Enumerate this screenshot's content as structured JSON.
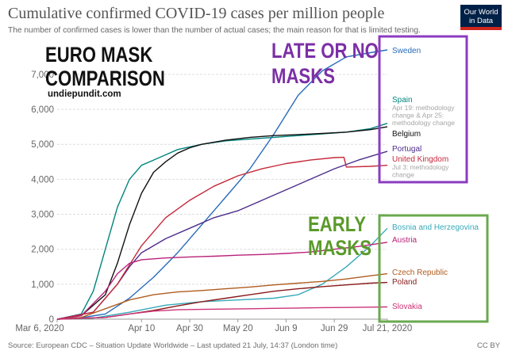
{
  "header": {
    "title": "Cumulative confirmed COVID-19 cases per million people",
    "subtitle": "The number of confirmed cases is lower than the number of actual cases; the main reason for that is limited testing.",
    "logo_line1": "Our World",
    "logo_line2": "in Data"
  },
  "annotations": {
    "euro_line1": "EURO MASK",
    "euro_line2": "COMPARISON",
    "site": "undiepundit.com",
    "late_line1": "LATE OR NO",
    "late_line2": "MASKS",
    "early_line1": "EARLY",
    "early_line2": "MASKS"
  },
  "footer": {
    "source": "Source: European CDC – Situation Update Worldwide – Last updated 21 July, 14:37 (London time)",
    "license": "CC BY"
  },
  "colors": {
    "late_box": "#8b3cc0",
    "early_box": "#6aa84f"
  },
  "chart_data": {
    "type": "line",
    "title": "Cumulative confirmed COVID-19 cases per million people",
    "xlabel": "",
    "ylabel": "",
    "x_domain": [
      0,
      137
    ],
    "ylim": [
      0,
      7700
    ],
    "y_ticks": [
      0,
      1000,
      2000,
      3000,
      4000,
      5000,
      6000,
      7000
    ],
    "y_tick_labels": [
      "0",
      "1,000",
      "2,000",
      "3,000",
      "4,000",
      "5,000",
      "6,000",
      "7,000"
    ],
    "x_ticks": [
      0,
      35,
      55,
      75,
      95,
      115,
      137
    ],
    "x_tick_labels": [
      "Mar 6, 2020",
      "Apr 10",
      "Apr 30",
      "May 20",
      "Jun 9",
      "Jun 29",
      "Jul 21, 2020"
    ],
    "grid": true,
    "series": [
      {
        "name": "Sweden",
        "color": "#286bbb",
        "label_value": 7700,
        "points": [
          [
            0,
            0
          ],
          [
            10,
            40
          ],
          [
            20,
            150
          ],
          [
            30,
            600
          ],
          [
            40,
            1200
          ],
          [
            50,
            1900
          ],
          [
            60,
            2700
          ],
          [
            70,
            3500
          ],
          [
            80,
            4300
          ],
          [
            90,
            5300
          ],
          [
            100,
            6400
          ],
          [
            110,
            7100
          ],
          [
            120,
            7500
          ],
          [
            130,
            7620
          ],
          [
            137,
            7700
          ]
        ]
      },
      {
        "name": "Spain",
        "color": "#00847e",
        "label_value": 6000,
        "note": "Apr 19: methodology change & Apr 25: methodology change",
        "points": [
          [
            0,
            0
          ],
          [
            10,
            150
          ],
          [
            15,
            800
          ],
          [
            20,
            2000
          ],
          [
            25,
            3200
          ],
          [
            30,
            4000
          ],
          [
            35,
            4400
          ],
          [
            40,
            4550
          ],
          [
            45,
            4700
          ],
          [
            50,
            4850
          ],
          [
            60,
            5000
          ],
          [
            70,
            5100
          ],
          [
            80,
            5150
          ],
          [
            90,
            5200
          ],
          [
            100,
            5250
          ],
          [
            110,
            5300
          ],
          [
            120,
            5350
          ],
          [
            130,
            5450
          ],
          [
            137,
            5600
          ]
        ]
      },
      {
        "name": "Belgium",
        "color": "#111111",
        "label_value": 5200,
        "points": [
          [
            0,
            0
          ],
          [
            10,
            100
          ],
          [
            20,
            700
          ],
          [
            25,
            1600
          ],
          [
            30,
            2700
          ],
          [
            35,
            3600
          ],
          [
            40,
            4200
          ],
          [
            45,
            4500
          ],
          [
            50,
            4750
          ],
          [
            55,
            4900
          ],
          [
            60,
            5000
          ],
          [
            70,
            5120
          ],
          [
            80,
            5200
          ],
          [
            90,
            5250
          ],
          [
            100,
            5280
          ],
          [
            110,
            5310
          ],
          [
            120,
            5350
          ],
          [
            130,
            5420
          ],
          [
            137,
            5500
          ]
        ]
      },
      {
        "name": "Portugal",
        "color": "#4c2d8c",
        "label_value": 4800,
        "points": [
          [
            0,
            0
          ],
          [
            15,
            200
          ],
          [
            25,
            1000
          ],
          [
            30,
            1500
          ],
          [
            35,
            1900
          ],
          [
            45,
            2300
          ],
          [
            55,
            2600
          ],
          [
            65,
            2900
          ],
          [
            75,
            3100
          ],
          [
            85,
            3400
          ],
          [
            95,
            3700
          ],
          [
            105,
            4000
          ],
          [
            115,
            4300
          ],
          [
            125,
            4550
          ],
          [
            137,
            4800
          ]
        ]
      },
      {
        "name": "United Kingdom",
        "color": "#c4283b",
        "label_value": 4400,
        "note": "Jul 3: methodology change",
        "points": [
          [
            0,
            0
          ],
          [
            15,
            200
          ],
          [
            25,
            1000
          ],
          [
            35,
            2100
          ],
          [
            45,
            2900
          ],
          [
            55,
            3400
          ],
          [
            65,
            3800
          ],
          [
            75,
            4100
          ],
          [
            85,
            4300
          ],
          [
            95,
            4450
          ],
          [
            105,
            4550
          ],
          [
            115,
            4620
          ],
          [
            119,
            4630
          ],
          [
            120,
            4350
          ],
          [
            130,
            4370
          ],
          [
            137,
            4400
          ]
        ]
      },
      {
        "name": "Bosnia and Herzegovina",
        "color": "#38aaba",
        "label_value": 2600,
        "points": [
          [
            0,
            0
          ],
          [
            15,
            30
          ],
          [
            30,
            200
          ],
          [
            45,
            400
          ],
          [
            60,
            500
          ],
          [
            75,
            550
          ],
          [
            90,
            600
          ],
          [
            100,
            700
          ],
          [
            110,
            1000
          ],
          [
            120,
            1500
          ],
          [
            130,
            2100
          ],
          [
            137,
            2600
          ]
        ]
      },
      {
        "name": "Austria",
        "color": "#b9227a",
        "label_value": 2200,
        "points": [
          [
            0,
            0
          ],
          [
            10,
            100
          ],
          [
            20,
            800
          ],
          [
            25,
            1300
          ],
          [
            30,
            1600
          ],
          [
            35,
            1700
          ],
          [
            45,
            1750
          ],
          [
            55,
            1780
          ],
          [
            65,
            1800
          ],
          [
            75,
            1830
          ],
          [
            85,
            1850
          ],
          [
            95,
            1880
          ],
          [
            105,
            1920
          ],
          [
            115,
            2000
          ],
          [
            125,
            2080
          ],
          [
            137,
            2200
          ]
        ]
      },
      {
        "name": "Czech Republic",
        "color": "#b05c1f",
        "label_value": 1300,
        "points": [
          [
            0,
            0
          ],
          [
            10,
            50
          ],
          [
            20,
            300
          ],
          [
            30,
            550
          ],
          [
            40,
            700
          ],
          [
            50,
            780
          ],
          [
            60,
            820
          ],
          [
            70,
            870
          ],
          [
            80,
            920
          ],
          [
            90,
            980
          ],
          [
            100,
            1030
          ],
          [
            110,
            1080
          ],
          [
            120,
            1150
          ],
          [
            130,
            1240
          ],
          [
            137,
            1300
          ]
        ]
      },
      {
        "name": "Poland",
        "color": "#8a1a1a",
        "label_value": 1050,
        "points": [
          [
            0,
            0
          ],
          [
            20,
            50
          ],
          [
            30,
            150
          ],
          [
            40,
            250
          ],
          [
            50,
            380
          ],
          [
            60,
            500
          ],
          [
            70,
            600
          ],
          [
            80,
            700
          ],
          [
            90,
            800
          ],
          [
            100,
            870
          ],
          [
            110,
            930
          ],
          [
            120,
            980
          ],
          [
            130,
            1030
          ],
          [
            137,
            1050
          ]
        ]
      },
      {
        "name": "Slovakia",
        "color": "#cc3377",
        "label_value": 350,
        "points": [
          [
            0,
            0
          ],
          [
            20,
            50
          ],
          [
            30,
            150
          ],
          [
            40,
            230
          ],
          [
            50,
            270
          ],
          [
            60,
            280
          ],
          [
            70,
            290
          ],
          [
            80,
            300
          ],
          [
            90,
            310
          ],
          [
            100,
            320
          ],
          [
            110,
            330
          ],
          [
            120,
            335
          ],
          [
            130,
            345
          ],
          [
            137,
            350
          ]
        ]
      }
    ]
  }
}
